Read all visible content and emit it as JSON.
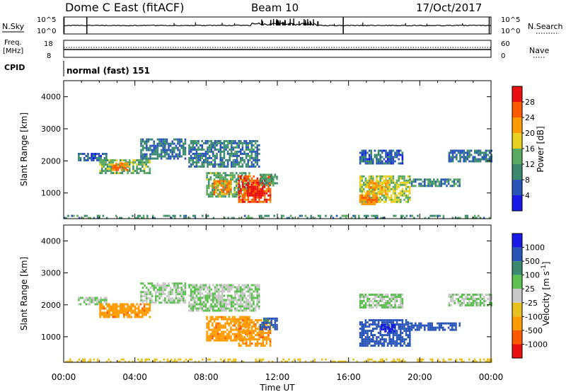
{
  "header": {
    "station": "Dome C East (fitACF)",
    "beam": "Beam 10",
    "date": "17/Oct/2017"
  },
  "panel_labels": {
    "nsky": "N.Sky",
    "nsearch": "N.Search",
    "freq_line1": "Freq.",
    "freq_line2": "[MHz]",
    "nave": "Nave",
    "cpid": "CPID",
    "cpid_value": "normal (fast) 151",
    "nsky_ticks": [
      "10^5",
      "10^0"
    ],
    "nsearch_ticks": [
      "10^5",
      "10^0"
    ],
    "freq_ticks": [
      "18",
      "8"
    ],
    "nave_ticks": [
      "60",
      "0"
    ]
  },
  "colors": {
    "power_scale": [
      "#1a1ae6",
      "#2a55b8",
      "#3a8a70",
      "#5aaa60",
      "#e8d020",
      "#ff9a00",
      "#ff5a00",
      "#e81010"
    ],
    "velocity_scale": [
      "#e81010",
      "#ff5a00",
      "#ff9a00",
      "#e8c020",
      "#c8c8c8",
      "#5cc050",
      "#3a8a70",
      "#2a55b8",
      "#1a1ae6"
    ]
  },
  "chart_data": [
    {
      "type": "heatmap",
      "title": "Power",
      "ylabel": "Slant Range [km]",
      "ylim": [
        200,
        4500
      ],
      "yticks": [
        "1000",
        "2000",
        "3000",
        "4000"
      ],
      "x_ticks": [
        "00:00",
        "04:00",
        "08:00",
        "12:00",
        "16:00",
        "20:00",
        "00:00"
      ],
      "xlim_hours": [
        0,
        24
      ],
      "colorbar": {
        "label": "Power [dB]",
        "ticks": [
          "4",
          "8",
          "12",
          "16",
          "20",
          "24",
          "28"
        ],
        "range": [
          0,
          32
        ]
      },
      "regions": [
        {
          "t0": 0.8,
          "t1": 2.4,
          "r0": 2000,
          "r1": 2250,
          "value": 7
        },
        {
          "t0": 2.0,
          "t1": 4.8,
          "r0": 1650,
          "r1": 2050,
          "value": 14
        },
        {
          "t0": 2.7,
          "t1": 3.6,
          "r0": 1750,
          "r1": 1950,
          "value": 24
        },
        {
          "t0": 4.3,
          "t1": 6.8,
          "r0": 2050,
          "r1": 2700,
          "value": 8
        },
        {
          "t0": 7.0,
          "t1": 11.0,
          "r0": 1850,
          "r1": 2650,
          "value": 9
        },
        {
          "t0": 8.0,
          "t1": 10.4,
          "r0": 900,
          "r1": 1650,
          "value": 13
        },
        {
          "t0": 8.4,
          "t1": 9.4,
          "r0": 950,
          "r1": 1400,
          "value": 22
        },
        {
          "t0": 9.8,
          "t1": 11.6,
          "r0": 750,
          "r1": 1550,
          "value": 26
        },
        {
          "t0": 10.3,
          "t1": 11.3,
          "r0": 900,
          "r1": 1350,
          "value": 30
        },
        {
          "t0": 11.0,
          "t1": 12.0,
          "r0": 1250,
          "r1": 1600,
          "value": 12
        },
        {
          "t0": 16.6,
          "t1": 19.4,
          "r0": 750,
          "r1": 1550,
          "value": 16
        },
        {
          "t0": 17.0,
          "t1": 18.2,
          "r0": 950,
          "r1": 1400,
          "value": 21
        },
        {
          "t0": 16.6,
          "t1": 17.6,
          "r0": 650,
          "r1": 950,
          "value": 24
        },
        {
          "t0": 19.4,
          "t1": 22.2,
          "r0": 1200,
          "r1": 1450,
          "value": 10
        },
        {
          "t0": 16.6,
          "t1": 19.0,
          "r0": 1950,
          "r1": 2350,
          "value": 7
        },
        {
          "t0": 21.6,
          "t1": 24.0,
          "r0": 2000,
          "r1": 2350,
          "value": 8
        },
        {
          "t0": 0.0,
          "t1": 24.0,
          "r0": 200,
          "r1": 320,
          "value": 11
        }
      ]
    },
    {
      "type": "heatmap",
      "title": "Velocity",
      "ylabel": "Slant Range [km]",
      "xlabel": "Time UT",
      "ylim": [
        200,
        4500
      ],
      "yticks": [
        "1000",
        "2000",
        "3000",
        "4000"
      ],
      "x_ticks": [
        "00:00",
        "04:00",
        "08:00",
        "12:00",
        "16:00",
        "20:00",
        "00:00"
      ],
      "xlim_hours": [
        0,
        24
      ],
      "colorbar": {
        "label": "Velocity [m s^-1]",
        "ticks": [
          "1000",
          "500",
          "100",
          "25",
          "-25",
          "-100",
          "-500",
          "-1000"
        ],
        "classes": [
          -1000,
          -500,
          -100,
          -25,
          0,
          25,
          100,
          500,
          1000
        ]
      },
      "regions": [
        {
          "t0": 0.8,
          "t1": 2.4,
          "r0": 2000,
          "r1": 2250,
          "value": 0
        },
        {
          "t0": 2.0,
          "t1": 4.8,
          "r0": 1650,
          "r1": 2050,
          "value": -400
        },
        {
          "t0": 4.3,
          "t1": 6.8,
          "r0": 2050,
          "r1": 2700,
          "value": 0
        },
        {
          "t0": 7.0,
          "t1": 11.0,
          "r0": 1850,
          "r1": 2650,
          "value": 0
        },
        {
          "t0": 8.0,
          "t1": 10.4,
          "r0": 900,
          "r1": 1650,
          "value": -400
        },
        {
          "t0": 9.8,
          "t1": 11.6,
          "r0": 750,
          "r1": 1550,
          "value": -400
        },
        {
          "t0": 11.0,
          "t1": 12.0,
          "r0": 1250,
          "r1": 1600,
          "value": 120
        },
        {
          "t0": 16.6,
          "t1": 19.4,
          "r0": 750,
          "r1": 1550,
          "value": 200
        },
        {
          "t0": 17.8,
          "t1": 18.6,
          "r0": 1200,
          "r1": 1400,
          "value": 700
        },
        {
          "t0": 19.4,
          "t1": 22.2,
          "r0": 1200,
          "r1": 1450,
          "value": 150
        },
        {
          "t0": 16.6,
          "t1": 19.0,
          "r0": 1950,
          "r1": 2350,
          "value": 0
        },
        {
          "t0": 21.6,
          "t1": 24.0,
          "r0": 2000,
          "r1": 2350,
          "value": 0
        },
        {
          "t0": 0.0,
          "t1": 24.0,
          "r0": 200,
          "r1": 320,
          "value": -50
        }
      ]
    }
  ]
}
